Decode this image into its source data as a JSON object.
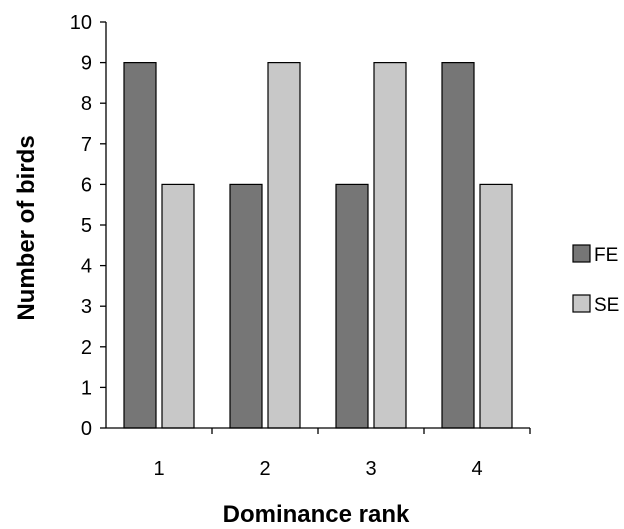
{
  "chart_data": {
    "type": "bar",
    "title": "",
    "xlabel": "Dominance rank",
    "ylabel": "Number of birds",
    "categories": [
      "1",
      "2",
      "3",
      "4"
    ],
    "series": [
      {
        "name": "FE",
        "values": [
          9,
          6,
          6,
          9
        ],
        "color": "#767676"
      },
      {
        "name": "SE",
        "values": [
          6,
          9,
          9,
          6
        ],
        "color": "#c8c8c8"
      }
    ],
    "ylim": [
      0,
      10
    ],
    "yticks": [
      "0",
      "1",
      "2",
      "3",
      "4",
      "5",
      "6",
      "7",
      "8",
      "9",
      "10"
    ],
    "grid": false,
    "legend_position": "right"
  }
}
